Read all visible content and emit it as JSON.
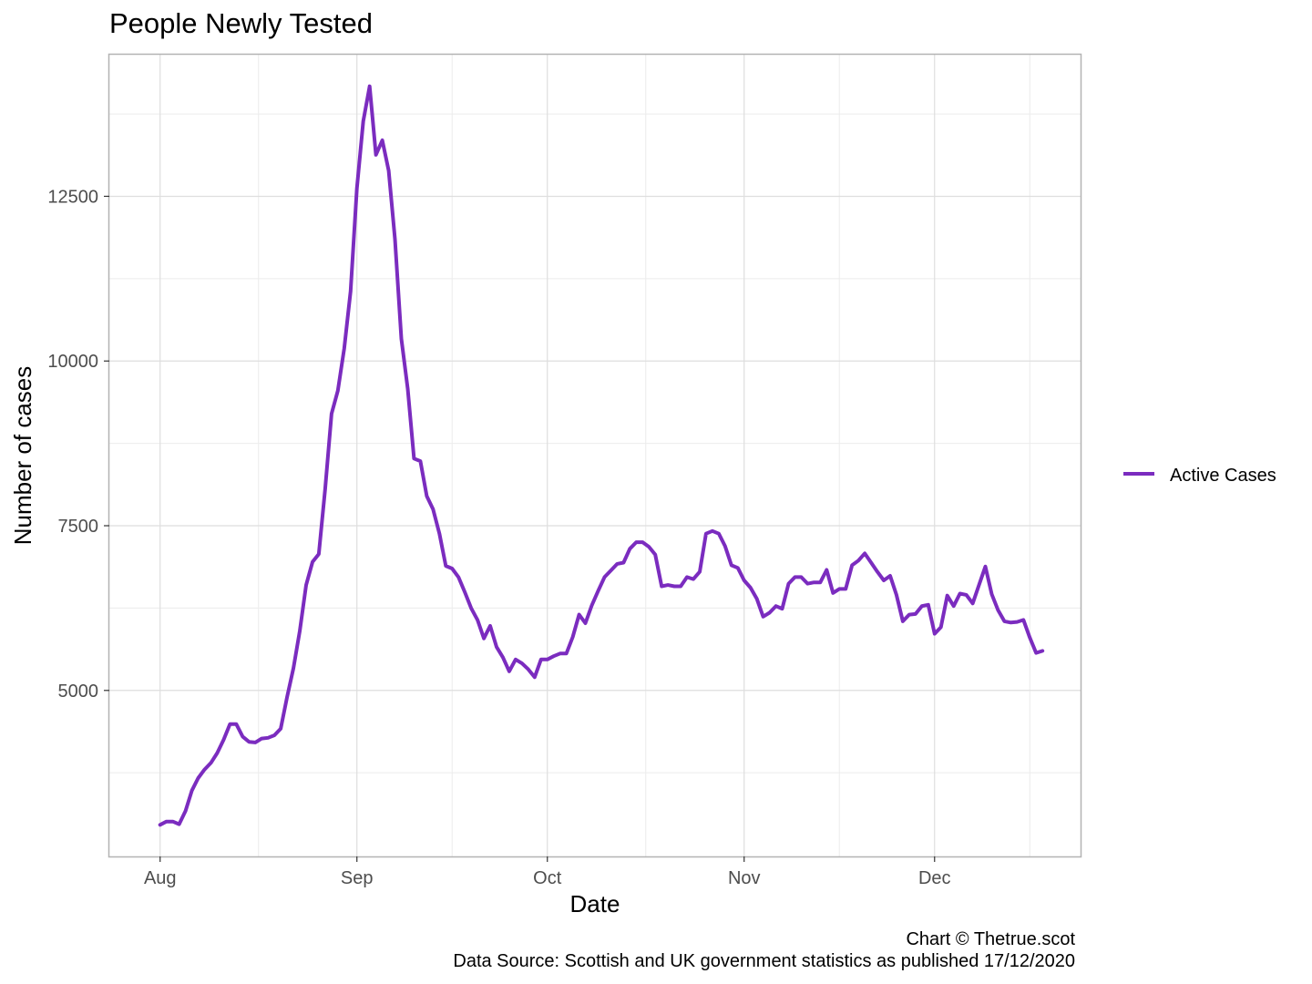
{
  "chart_data": {
    "type": "line",
    "title": "People Newly Tested",
    "xlabel": "Date",
    "ylabel": "Number of cases",
    "x_ticks": [
      "Aug",
      "Sep",
      "Oct",
      "Nov",
      "Dec"
    ],
    "x_tick_dates": [
      "2020-08-01",
      "2020-09-01",
      "2020-10-01",
      "2020-11-01",
      "2020-12-01"
    ],
    "y_ticks": [
      5000,
      7500,
      10000,
      12500
    ],
    "xlim": [
      "2020-07-24",
      "2020-12-24"
    ],
    "ylim": [
      2480,
      14650
    ],
    "grid": true,
    "legend_position": "right",
    "series": [
      {
        "name": "Active Cases",
        "color": "#7B2CBF",
        "points": [
          [
            "2020-08-01",
            2960
          ],
          [
            "2020-08-02",
            3010
          ],
          [
            "2020-08-03",
            3010
          ],
          [
            "2020-08-04",
            2970
          ],
          [
            "2020-08-05",
            3170
          ],
          [
            "2020-08-06",
            3480
          ],
          [
            "2020-08-07",
            3670
          ],
          [
            "2020-08-08",
            3800
          ],
          [
            "2020-08-09",
            3900
          ],
          [
            "2020-08-10",
            4050
          ],
          [
            "2020-08-11",
            4250
          ],
          [
            "2020-08-12",
            4490
          ],
          [
            "2020-08-13",
            4490
          ],
          [
            "2020-08-14",
            4300
          ],
          [
            "2020-08-15",
            4220
          ],
          [
            "2020-08-16",
            4210
          ],
          [
            "2020-08-17",
            4270
          ],
          [
            "2020-08-18",
            4280
          ],
          [
            "2020-08-19",
            4320
          ],
          [
            "2020-08-20",
            4420
          ],
          [
            "2020-08-21",
            4900
          ],
          [
            "2020-08-22",
            5340
          ],
          [
            "2020-08-23",
            5900
          ],
          [
            "2020-08-24",
            6600
          ],
          [
            "2020-08-25",
            6950
          ],
          [
            "2020-08-26",
            7070
          ],
          [
            "2020-08-27",
            8060
          ],
          [
            "2020-08-28",
            9200
          ],
          [
            "2020-08-29",
            9550
          ],
          [
            "2020-08-30",
            10190
          ],
          [
            "2020-08-31",
            11060
          ],
          [
            "2020-09-01",
            12620
          ],
          [
            "2020-09-02",
            13640
          ],
          [
            "2020-09-03",
            14170
          ],
          [
            "2020-09-04",
            13130
          ],
          [
            "2020-09-05",
            13350
          ],
          [
            "2020-09-06",
            12890
          ],
          [
            "2020-09-07",
            11850
          ],
          [
            "2020-09-08",
            10340
          ],
          [
            "2020-09-09",
            9580
          ],
          [
            "2020-09-10",
            8520
          ],
          [
            "2020-09-11",
            8480
          ],
          [
            "2020-09-12",
            7950
          ],
          [
            "2020-09-13",
            7750
          ],
          [
            "2020-09-14",
            7380
          ],
          [
            "2020-09-15",
            6890
          ],
          [
            "2020-09-16",
            6850
          ],
          [
            "2020-09-17",
            6720
          ],
          [
            "2020-09-18",
            6490
          ],
          [
            "2020-09-19",
            6250
          ],
          [
            "2020-09-20",
            6070
          ],
          [
            "2020-09-21",
            5790
          ],
          [
            "2020-09-22",
            5980
          ],
          [
            "2020-09-23",
            5660
          ],
          [
            "2020-09-24",
            5500
          ],
          [
            "2020-09-25",
            5290
          ],
          [
            "2020-09-26",
            5470
          ],
          [
            "2020-09-27",
            5410
          ],
          [
            "2020-09-28",
            5320
          ],
          [
            "2020-09-29",
            5200
          ],
          [
            "2020-09-30",
            5470
          ],
          [
            "2020-10-01",
            5470
          ],
          [
            "2020-10-02",
            5520
          ],
          [
            "2020-10-03",
            5560
          ],
          [
            "2020-10-04",
            5560
          ],
          [
            "2020-10-05",
            5810
          ],
          [
            "2020-10-06",
            6150
          ],
          [
            "2020-10-07",
            6020
          ],
          [
            "2020-10-08",
            6290
          ],
          [
            "2020-10-09",
            6510
          ],
          [
            "2020-10-10",
            6720
          ],
          [
            "2020-10-11",
            6820
          ],
          [
            "2020-10-12",
            6920
          ],
          [
            "2020-10-13",
            6940
          ],
          [
            "2020-10-14",
            7150
          ],
          [
            "2020-10-15",
            7250
          ],
          [
            "2020-10-16",
            7250
          ],
          [
            "2020-10-17",
            7180
          ],
          [
            "2020-10-18",
            7060
          ],
          [
            "2020-10-19",
            6580
          ],
          [
            "2020-10-20",
            6600
          ],
          [
            "2020-10-21",
            6580
          ],
          [
            "2020-10-22",
            6580
          ],
          [
            "2020-10-23",
            6720
          ],
          [
            "2020-10-24",
            6690
          ],
          [
            "2020-10-25",
            6800
          ],
          [
            "2020-10-26",
            7380
          ],
          [
            "2020-10-27",
            7420
          ],
          [
            "2020-10-28",
            7380
          ],
          [
            "2020-10-29",
            7190
          ],
          [
            "2020-10-30",
            6900
          ],
          [
            "2020-10-31",
            6860
          ],
          [
            "2020-11-01",
            6670
          ],
          [
            "2020-11-02",
            6560
          ],
          [
            "2020-11-03",
            6390
          ],
          [
            "2020-11-04",
            6120
          ],
          [
            "2020-11-05",
            6180
          ],
          [
            "2020-11-06",
            6280
          ],
          [
            "2020-11-07",
            6240
          ],
          [
            "2020-11-08",
            6620
          ],
          [
            "2020-11-09",
            6720
          ],
          [
            "2020-11-10",
            6720
          ],
          [
            "2020-11-11",
            6620
          ],
          [
            "2020-11-12",
            6640
          ],
          [
            "2020-11-13",
            6640
          ],
          [
            "2020-11-14",
            6830
          ],
          [
            "2020-11-15",
            6480
          ],
          [
            "2020-11-16",
            6540
          ],
          [
            "2020-11-17",
            6540
          ],
          [
            "2020-11-18",
            6900
          ],
          [
            "2020-11-19",
            6970
          ],
          [
            "2020-11-20",
            7080
          ],
          [
            "2020-11-21",
            6940
          ],
          [
            "2020-11-22",
            6800
          ],
          [
            "2020-11-23",
            6670
          ],
          [
            "2020-11-24",
            6740
          ],
          [
            "2020-11-25",
            6450
          ],
          [
            "2020-11-26",
            6050
          ],
          [
            "2020-11-27",
            6150
          ],
          [
            "2020-11-28",
            6160
          ],
          [
            "2020-11-29",
            6280
          ],
          [
            "2020-11-30",
            6300
          ],
          [
            "2020-12-01",
            5860
          ],
          [
            "2020-12-02",
            5960
          ],
          [
            "2020-12-03",
            6440
          ],
          [
            "2020-12-04",
            6280
          ],
          [
            "2020-12-05",
            6470
          ],
          [
            "2020-12-06",
            6450
          ],
          [
            "2020-12-07",
            6320
          ],
          [
            "2020-12-08",
            6600
          ],
          [
            "2020-12-09",
            6880
          ],
          [
            "2020-12-10",
            6460
          ],
          [
            "2020-12-11",
            6220
          ],
          [
            "2020-12-12",
            6050
          ],
          [
            "2020-12-13",
            6030
          ],
          [
            "2020-12-14",
            6040
          ],
          [
            "2020-12-15",
            6070
          ],
          [
            "2020-12-16",
            5800
          ],
          [
            "2020-12-17",
            5570
          ],
          [
            "2020-12-18",
            5600
          ]
        ]
      }
    ]
  },
  "caption": {
    "line1": "Chart © Thetrue.scot",
    "line2": "Data Source: Scottish and UK government statistics as published 17/12/2020"
  }
}
